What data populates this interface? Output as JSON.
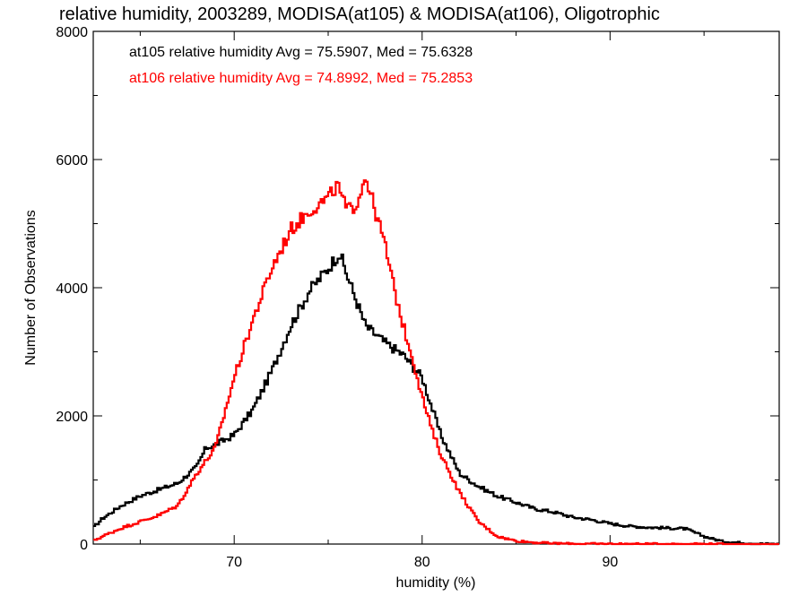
{
  "chart_data": {
    "type": "line",
    "title": "relative humidity, 2003289, MODISA(at105) & MODISA(at106), Oligotrophic",
    "xlabel": "humidity (%)",
    "ylabel": "Number of Observations",
    "xlim": [
      62.5,
      99
    ],
    "ylim": [
      0,
      8000
    ],
    "x_ticks": [
      "70",
      "80",
      "90"
    ],
    "y_ticks": [
      "0",
      "2000",
      "4000",
      "6000",
      "8000"
    ],
    "grid": false,
    "legend_placement": "top-left",
    "series": [
      {
        "name": "at105 relative humidity Avg = 75.5907, Med = 75.6328",
        "color": "#000000",
        "x": [
          62.5,
          63,
          64,
          65,
          66,
          67,
          68,
          68.5,
          69,
          70,
          71,
          72,
          73,
          74,
          75,
          75.6,
          76,
          76.5,
          77,
          78,
          79,
          80,
          81,
          82,
          83,
          84,
          85,
          86,
          87,
          88,
          89,
          90,
          91,
          92,
          93,
          94,
          95,
          96,
          97,
          98,
          99
        ],
        "y": [
          250,
          400,
          600,
          750,
          850,
          950,
          1200,
          1500,
          1550,
          1700,
          2100,
          2700,
          3400,
          3950,
          4300,
          4550,
          4200,
          3800,
          3400,
          3150,
          2950,
          2600,
          1700,
          1100,
          900,
          750,
          650,
          550,
          500,
          420,
          380,
          320,
          280,
          260,
          250,
          240,
          120,
          40,
          20,
          5,
          0
        ]
      },
      {
        "name": "at106 relative humidity Avg = 74.8992, Med = 75.2853",
        "color": "#ff0000",
        "x": [
          62.5,
          63,
          64,
          65,
          66,
          67,
          68,
          69,
          70,
          71,
          72,
          73,
          74,
          75,
          75.5,
          76,
          76.5,
          77,
          77.5,
          78,
          78.5,
          79,
          79.5,
          80,
          80.5,
          81,
          81.5,
          82,
          83,
          84,
          85,
          86,
          87,
          88,
          89,
          90,
          92,
          94,
          96,
          99
        ],
        "y": [
          50,
          120,
          250,
          350,
          450,
          600,
          1100,
          1500,
          2600,
          3500,
          4300,
          4900,
          5200,
          5400,
          5600,
          5200,
          5300,
          5750,
          5200,
          4700,
          4000,
          3400,
          2900,
          2300,
          1800,
          1400,
          1100,
          800,
          350,
          120,
          50,
          25,
          10,
          5,
          3,
          2,
          1,
          1,
          0,
          0
        ]
      }
    ]
  }
}
